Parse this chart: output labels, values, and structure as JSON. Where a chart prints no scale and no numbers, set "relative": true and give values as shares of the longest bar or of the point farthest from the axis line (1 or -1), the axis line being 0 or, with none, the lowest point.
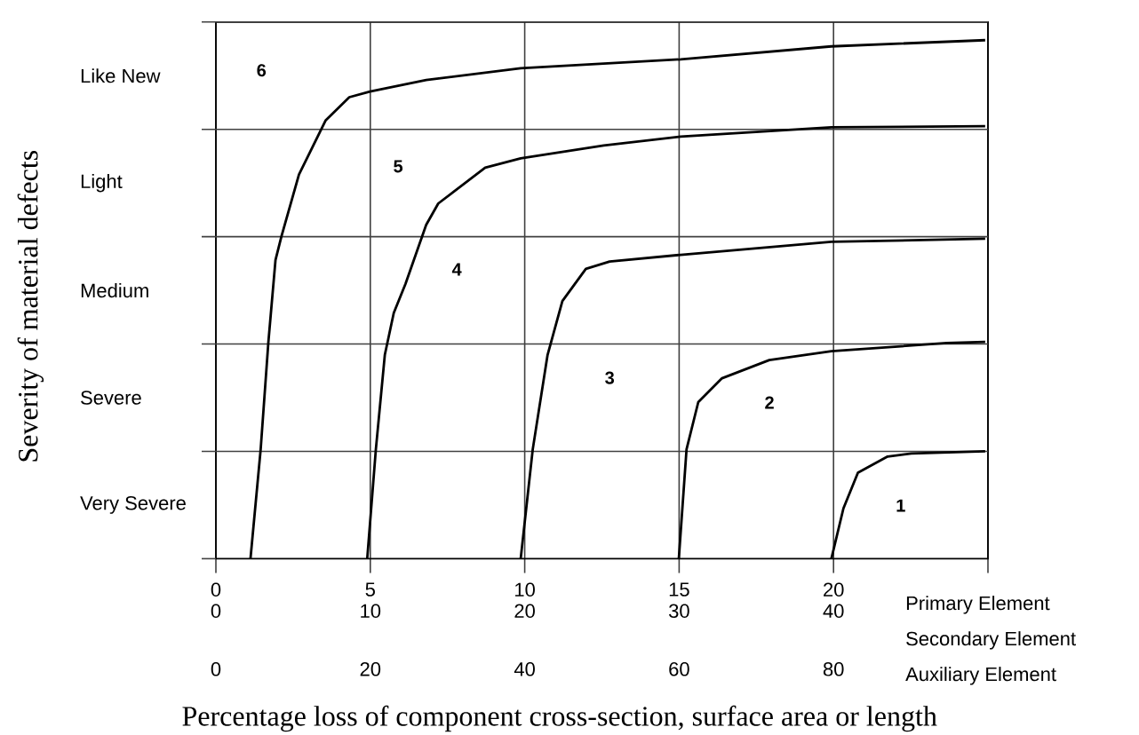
{
  "chart_data": {
    "type": "line",
    "relative": true,
    "xlabel": "Percentage loss of component cross-section, surface area or length",
    "xlim": [
      0,
      25
    ],
    "xticks": [
      0,
      5,
      10,
      15,
      20,
      {
        "value": 25,
        "label": null
      }
    ],
    "x2lim": [
      0,
      50
    ],
    "x2ticks": [
      0,
      10,
      20,
      30,
      40
    ],
    "grid": "x",
    "marker": "none",
    "line_style": "solid",
    "ref_lines": [
      {
        "axis": "y",
        "value": 0.207
      },
      {
        "axis": "y",
        "value": 0.414
      },
      {
        "axis": "y",
        "value": 0.621
      },
      {
        "axis": "y",
        "value": 0.828
      },
      {
        "axis": "y",
        "value": 1.035
      }
    ],
    "series": [
      {
        "color": "#000000",
        "x": [
          1.12,
          1.45,
          1.7,
          1.93,
          2.12,
          2.69,
          3.55,
          4.32,
          4.99,
          6.81,
          9.87,
          15.05,
          19.93,
          24.91
        ],
        "values": [
          0,
          0.211,
          0.418,
          0.576,
          0.621,
          0.741,
          0.845,
          0.89,
          0.901,
          0.923,
          0.946,
          0.963,
          0.988,
          1
        ]
      },
      {
        "color": "#000000",
        "x": [
          4.9,
          5.18,
          5.47,
          5.76,
          6.14,
          6.81,
          7.2,
          8.72,
          9.87,
          12.56,
          15.05,
          19.93,
          24.91
        ],
        "values": [
          0,
          0.211,
          0.393,
          0.474,
          0.53,
          0.644,
          0.685,
          0.754,
          0.772,
          0.797,
          0.814,
          0.832,
          0.834
        ]
      },
      {
        "color": "#000000",
        "x": [
          9.87,
          10.26,
          10.74,
          11.22,
          11.98,
          12.75,
          15.05,
          19.93,
          24.91
        ],
        "values": [
          0,
          0.211,
          0.393,
          0.497,
          0.559,
          0.573,
          0.586,
          0.611,
          0.617
        ]
      },
      {
        "color": "#000000",
        "x": [
          14.99,
          15.24,
          15.62,
          16.39,
          17.92,
          19.93,
          23.67,
          24.91
        ],
        "values": [
          0,
          0.211,
          0.302,
          0.348,
          0.383,
          0.4,
          0.416,
          0.418
        ]
      },
      {
        "color": "#000000",
        "x": [
          19.93,
          20.32,
          20.79,
          21.75,
          22.52,
          24.91
        ],
        "values": [
          0,
          0.097,
          0.166,
          0.197,
          0.203,
          0.207
        ]
      }
    ],
    "annotations": [
      "1",
      "2",
      "3",
      "4",
      "5",
      "6",
      "Primary Element",
      "Secondary Element",
      "Auxiliary Element",
      "0",
      "20",
      "40",
      "60",
      "80",
      "Very Severe",
      "Severe",
      "Medium",
      "Light",
      "Like New",
      "Severity of material defects"
    ]
  }
}
